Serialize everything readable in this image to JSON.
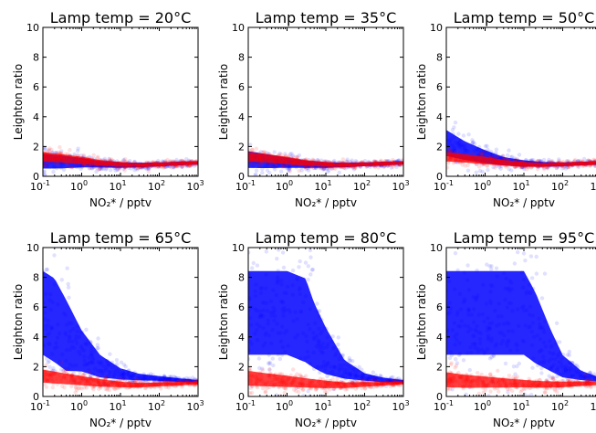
{
  "chart_data": [
    {
      "type": "scatter",
      "title": "Lamp temp = 20°C",
      "xlabel": "NO₂* / pptv",
      "ylabel": "Leighton ratio",
      "xscale": "log",
      "xlim": [
        0.1,
        1000
      ],
      "ylim": [
        0,
        10
      ],
      "series": [
        {
          "color": "#0000ff",
          "x": [
            0.1,
            0.3,
            1,
            3,
            10,
            30,
            100,
            300,
            1000
          ],
          "y": [
            1.0,
            0.95,
            0.9,
            0.8,
            0.75,
            0.75,
            0.8,
            0.85,
            0.9
          ],
          "spread": [
            0.8,
            0.7,
            0.5,
            0.35,
            0.3,
            0.25,
            0.2,
            0.2,
            0.15
          ]
        },
        {
          "color": "#ff0000",
          "x": [
            0.1,
            0.3,
            1,
            3,
            10,
            30,
            100,
            300,
            1000
          ],
          "y": [
            1.3,
            1.2,
            1.05,
            0.9,
            0.8,
            0.75,
            0.8,
            0.85,
            0.9
          ],
          "spread": [
            0.5,
            0.45,
            0.4,
            0.3,
            0.25,
            0.2,
            0.2,
            0.2,
            0.15
          ]
        }
      ]
    },
    {
      "type": "scatter",
      "title": "Lamp temp = 35°C",
      "xlabel": "NO₂* / pptv",
      "ylabel": "Leighton ratio",
      "xscale": "log",
      "xlim": [
        0.1,
        1000
      ],
      "ylim": [
        0,
        10
      ],
      "series": [
        {
          "color": "#0000ff",
          "x": [
            0.1,
            0.3,
            1,
            3,
            10,
            30,
            100,
            300,
            1000
          ],
          "y": [
            1.1,
            1.0,
            0.9,
            0.8,
            0.75,
            0.75,
            0.8,
            0.85,
            0.9
          ],
          "spread": [
            0.9,
            0.75,
            0.55,
            0.4,
            0.3,
            0.25,
            0.2,
            0.2,
            0.15
          ]
        },
        {
          "color": "#ff0000",
          "x": [
            0.1,
            0.3,
            1,
            3,
            10,
            30,
            100,
            300,
            1000
          ],
          "y": [
            1.3,
            1.2,
            1.05,
            0.9,
            0.8,
            0.75,
            0.8,
            0.85,
            0.9
          ],
          "spread": [
            0.5,
            0.45,
            0.4,
            0.3,
            0.25,
            0.2,
            0.2,
            0.2,
            0.15
          ]
        }
      ]
    },
    {
      "type": "scatter",
      "title": "Lamp temp = 50°C",
      "xlabel": "NO₂* / pptv",
      "ylabel": "Leighton ratio",
      "xscale": "log",
      "xlim": [
        0.1,
        1000
      ],
      "ylim": [
        0,
        10
      ],
      "series": [
        {
          "color": "#0000ff",
          "x": [
            0.1,
            0.3,
            1,
            3,
            10,
            30,
            100,
            300,
            1000
          ],
          "y": [
            2.2,
            1.7,
            1.3,
            1.0,
            0.85,
            0.8,
            0.8,
            0.85,
            0.9
          ],
          "spread": [
            1.4,
            1.0,
            0.7,
            0.45,
            0.35,
            0.25,
            0.2,
            0.2,
            0.15
          ]
        },
        {
          "color": "#ff0000",
          "x": [
            0.1,
            0.3,
            1,
            3,
            10,
            30,
            100,
            300,
            1000
          ],
          "y": [
            1.3,
            1.2,
            1.05,
            0.9,
            0.8,
            0.75,
            0.8,
            0.85,
            0.9
          ],
          "spread": [
            0.5,
            0.45,
            0.4,
            0.3,
            0.25,
            0.2,
            0.2,
            0.2,
            0.15
          ]
        }
      ]
    },
    {
      "type": "scatter",
      "title": "Lamp temp = 65°C",
      "xlabel": "NO₂* / pptv",
      "ylabel": "Leighton ratio",
      "xscale": "log",
      "xlim": [
        0.1,
        1000
      ],
      "ylim": [
        0,
        10
      ],
      "series": [
        {
          "color": "#0000ff",
          "x": [
            0.1,
            0.2,
            0.4,
            1,
            3,
            10,
            30,
            100,
            300,
            1000
          ],
          "y": [
            5.5,
            5.0,
            4.0,
            3.0,
            2.0,
            1.5,
            1.3,
            1.2,
            1.1,
            1.0
          ],
          "spread": [
            4.5,
            4.5,
            3.8,
            2.2,
            1.2,
            0.6,
            0.35,
            0.25,
            0.2,
            0.15
          ]
        },
        {
          "color": "#ff0000",
          "x": [
            0.1,
            0.3,
            1,
            3,
            10,
            30,
            100,
            300,
            1000
          ],
          "y": [
            1.35,
            1.2,
            1.05,
            0.9,
            0.8,
            0.75,
            0.8,
            0.85,
            0.9
          ],
          "spread": [
            0.7,
            0.6,
            0.5,
            0.4,
            0.3,
            0.25,
            0.2,
            0.2,
            0.15
          ]
        }
      ]
    },
    {
      "type": "scatter",
      "title": "Lamp temp = 80°C",
      "xlabel": "NO₂* / pptv",
      "ylabel": "Leighton ratio",
      "xscale": "log",
      "xlim": [
        0.1,
        1000
      ],
      "ylim": [
        0,
        10
      ],
      "series": [
        {
          "color": "#0000ff",
          "x": [
            0.1,
            0.3,
            1,
            3,
            5,
            10,
            30,
            100,
            300,
            1000
          ],
          "y": [
            5.5,
            5.5,
            5.5,
            5.0,
            4.0,
            3.0,
            1.8,
            1.3,
            1.1,
            1.0
          ],
          "spread": [
            4.5,
            4.5,
            4.5,
            4.5,
            3.5,
            2.5,
            1.0,
            0.4,
            0.25,
            0.15
          ]
        },
        {
          "color": "#ff0000",
          "x": [
            0.1,
            0.3,
            1,
            3,
            10,
            30,
            100,
            300,
            1000
          ],
          "y": [
            1.2,
            1.1,
            1.0,
            0.9,
            0.8,
            0.75,
            0.8,
            0.85,
            0.9
          ],
          "spread": [
            0.8,
            0.7,
            0.6,
            0.5,
            0.4,
            0.3,
            0.25,
            0.2,
            0.15
          ]
        }
      ]
    },
    {
      "type": "scatter",
      "title": "Lamp temp = 95°C",
      "xlabel": "NO₂* / pptv",
      "ylabel": "Leighton ratio",
      "xscale": "log",
      "xlim": [
        0.1,
        1000
      ],
      "ylim": [
        0,
        10
      ],
      "series": [
        {
          "color": "#0000ff",
          "x": [
            0.1,
            0.3,
            1,
            3,
            10,
            20,
            50,
            100,
            300,
            1000
          ],
          "y": [
            5.5,
            5.5,
            5.5,
            5.5,
            5.5,
            4.5,
            3.0,
            2.0,
            1.4,
            1.1
          ],
          "spread": [
            4.5,
            4.5,
            4.5,
            4.5,
            4.5,
            3.8,
            2.2,
            1.2,
            0.5,
            0.2
          ]
        },
        {
          "color": "#ff0000",
          "x": [
            0.1,
            0.3,
            1,
            3,
            10,
            30,
            100,
            300,
            1000
          ],
          "y": [
            1.1,
            1.0,
            0.95,
            0.9,
            0.85,
            0.8,
            0.8,
            0.85,
            0.9
          ],
          "spread": [
            0.8,
            0.7,
            0.6,
            0.5,
            0.4,
            0.35,
            0.3,
            0.25,
            0.2
          ]
        }
      ]
    }
  ]
}
